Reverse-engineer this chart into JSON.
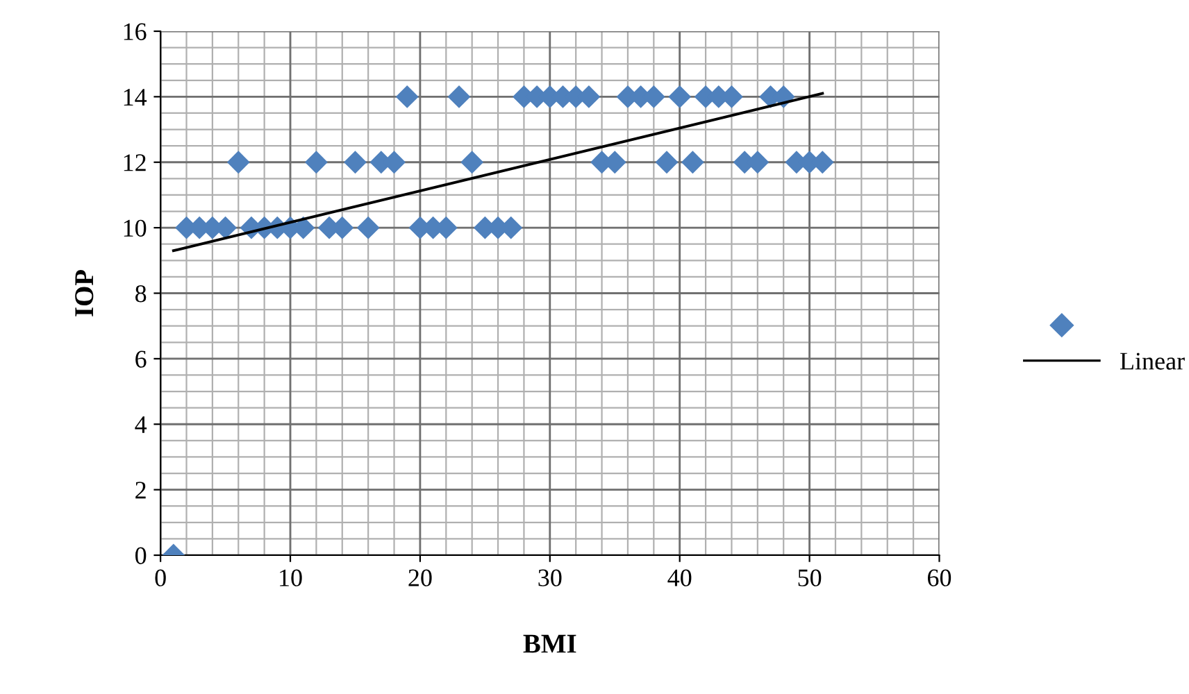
{
  "chart_data": {
    "type": "scatter",
    "xlabel": "BMI",
    "ylabel": "IOP",
    "xlim": [
      0,
      60
    ],
    "xticks": [
      0,
      10,
      20,
      30,
      40,
      50,
      60
    ],
    "ylim": [
      0,
      16
    ],
    "yticks": [
      0,
      2,
      4,
      6,
      8,
      10,
      12,
      14,
      16
    ],
    "grid": true,
    "legend": "right",
    "series": [
      {
        "marker": "diamond",
        "color": "#4f81bd",
        "x": [
          1,
          2,
          3,
          4,
          5,
          6,
          7,
          8,
          9,
          10,
          11,
          12,
          13,
          14,
          15,
          16,
          17,
          18,
          19,
          20,
          21,
          22,
          23,
          24,
          25,
          26,
          27,
          28,
          29,
          30,
          31,
          32,
          33,
          34,
          35,
          36,
          37,
          38,
          39,
          40,
          41,
          42,
          43,
          44,
          45,
          46,
          47,
          48,
          49,
          50,
          51
        ],
        "values": [
          0,
          10,
          10,
          10,
          10,
          12,
          10,
          10,
          10,
          10,
          10,
          12,
          10,
          10,
          12,
          10,
          12,
          12,
          14,
          10,
          10,
          10,
          14,
          12,
          10,
          10,
          10,
          14,
          14,
          14,
          14,
          14,
          14,
          12,
          12,
          14,
          14,
          14,
          12,
          14,
          12,
          14,
          14,
          14,
          12,
          12,
          14,
          14,
          12,
          12,
          12
        ]
      },
      {
        "type": "line",
        "name": "Linear",
        "color": "#000000",
        "x": [
          1,
          51
        ],
        "values": [
          9.3,
          14.1
        ]
      }
    ]
  }
}
